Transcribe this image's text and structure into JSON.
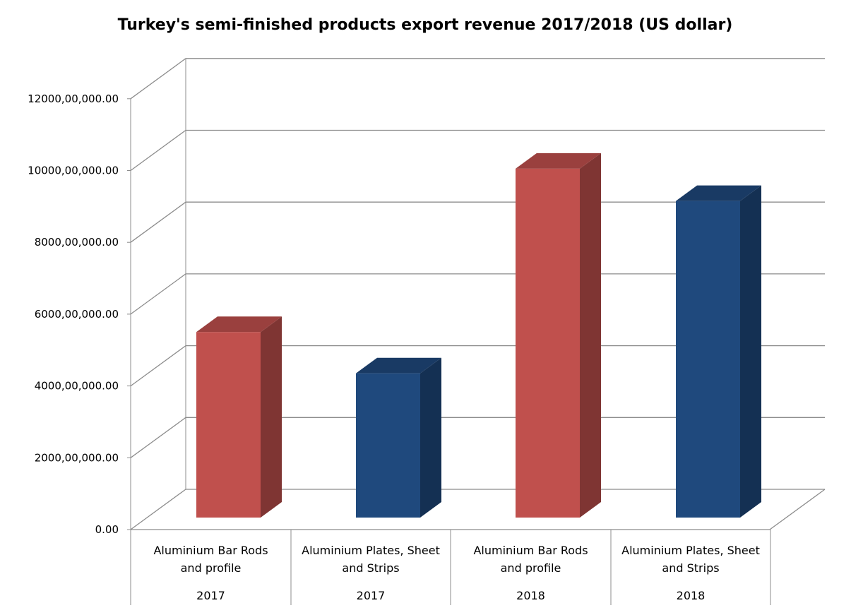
{
  "chart_data": {
    "type": "bar",
    "title": "Turkey's semi-finished products export revenue 2017/2018 (US dollar)",
    "xlabel": "",
    "ylabel": "",
    "ylim": [
      0,
      12000000000
    ],
    "ytick_labels": [
      "0.00",
      "2000,00,000.00",
      "4000,00,000.00",
      "6000,00,000.00",
      "8000,00,000.00",
      "10000,00,000.00",
      "12000,00,000.00"
    ],
    "categories": [
      {
        "label_line1": "Aluminium Bar Rods",
        "label_line2": "and profile",
        "year": "2017"
      },
      {
        "label_line1": "Aluminium Plates, Sheet",
        "label_line2": "and Strips",
        "year": "2017"
      },
      {
        "label_line1": "Aluminium Bar Rods",
        "label_line2": "and profile",
        "year": "2018"
      },
      {
        "label_line1": "Aluminium Plates, Sheet",
        "label_line2": "and Strips",
        "year": "2018"
      }
    ],
    "values": [
      5600000000,
      4450000000,
      10150000000,
      9250000000
    ],
    "bar_colors": [
      "#C0504D",
      "#1F497D",
      "#C0504D",
      "#1F497D"
    ],
    "grid": true,
    "three_d": true
  }
}
